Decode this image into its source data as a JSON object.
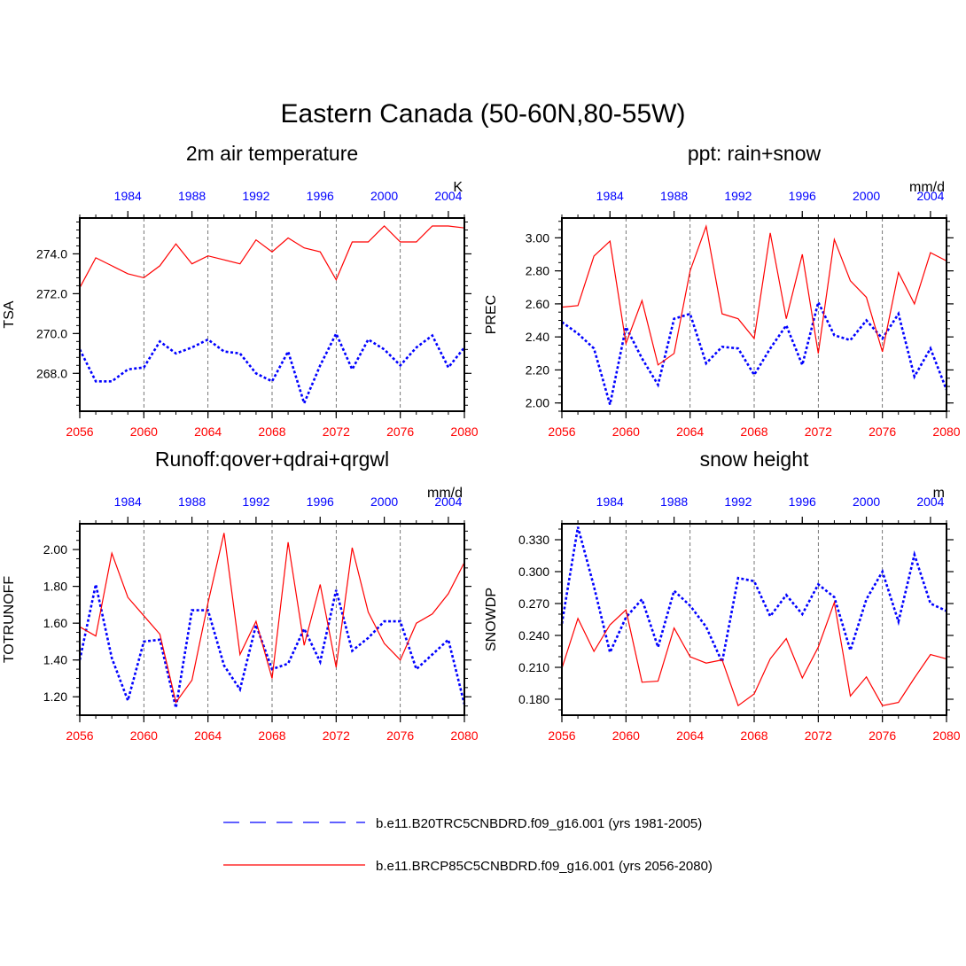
{
  "figure_title": "Eastern Canada (50-60N,80-55W)",
  "colors": {
    "hist": "#0000ff",
    "future": "#ff0000",
    "axis": "#000000",
    "grid": "#555555"
  },
  "chart_data": [
    {
      "type": "line",
      "title": "2m air temperature",
      "ylabel": "TSA",
      "units": "K",
      "ylim": [
        266.1,
        275.8
      ],
      "yticks": [
        268,
        270,
        272,
        274
      ],
      "ytick_labels": [
        "268.0",
        "270.0",
        "272.0",
        "274.0"
      ],
      "ytick_minor": 0.4,
      "x_bottom": [
        2056,
        2057,
        2058,
        2059,
        2060,
        2061,
        2062,
        2063,
        2064,
        2065,
        2066,
        2067,
        2068,
        2069,
        2070,
        2071,
        2072,
        2073,
        2074,
        2075,
        2076,
        2077,
        2078,
        2079,
        2080
      ],
      "xlim": [
        2056,
        2080
      ],
      "bottom_ticks": [
        2056,
        2060,
        2064,
        2068,
        2072,
        2076,
        2080
      ],
      "top_ticks": [
        1984,
        1988,
        1992,
        1996,
        2000,
        2004
      ],
      "top_offset": 75,
      "grid_x": [
        2060,
        2064,
        2068,
        2072,
        2076
      ],
      "series": [
        {
          "name": "b.e11.B20TRC5CNBDRD.f09_g16.001 (yrs 1981-2005)",
          "style": "dashed",
          "values": [
            269.2,
            267.6,
            267.6,
            268.2,
            268.3,
            269.6,
            269.0,
            269.3,
            269.7,
            269.1,
            269.0,
            268.0,
            267.6,
            269.1,
            266.5,
            268.4,
            270.0,
            268.2,
            269.7,
            269.2,
            268.4,
            269.3,
            269.9,
            268.3,
            269.3
          ]
        },
        {
          "name": "b.e11.BRCP85C5CNBDRD.f09_g16.001 (yrs 2056-2080)",
          "style": "solid",
          "values": [
            272.3,
            273.8,
            273.4,
            273.0,
            272.8,
            273.4,
            274.5,
            273.5,
            273.9,
            273.7,
            273.5,
            274.7,
            274.1,
            274.8,
            274.3,
            274.1,
            272.7,
            274.6,
            274.6,
            275.4,
            274.6,
            274.6,
            275.4,
            275.4,
            275.3
          ]
        }
      ]
    },
    {
      "type": "line",
      "title": "ppt: rain+snow",
      "ylabel": "PREC",
      "units": "mm/d",
      "ylim": [
        1.95,
        3.12
      ],
      "yticks": [
        2.0,
        2.2,
        2.4,
        2.6,
        2.8,
        3.0
      ],
      "ytick_labels": [
        "2.00",
        "2.20",
        "2.40",
        "2.60",
        "2.80",
        "3.00"
      ],
      "ytick_minor": 0.05,
      "x_bottom": [
        2056,
        2057,
        2058,
        2059,
        2060,
        2061,
        2062,
        2063,
        2064,
        2065,
        2066,
        2067,
        2068,
        2069,
        2070,
        2071,
        2072,
        2073,
        2074,
        2075,
        2076,
        2077,
        2078,
        2079,
        2080
      ],
      "xlim": [
        2056,
        2080
      ],
      "bottom_ticks": [
        2056,
        2060,
        2064,
        2068,
        2072,
        2076,
        2080
      ],
      "top_ticks": [
        1984,
        1988,
        1992,
        1996,
        2000,
        2004
      ],
      "top_offset": 75,
      "grid_x": [
        2060,
        2064,
        2068,
        2072,
        2076
      ],
      "series": [
        {
          "name": "b.e11.B20TRC5CNBDRD.f09_g16.001 (yrs 1981-2005)",
          "style": "dashed",
          "values": [
            2.49,
            2.42,
            2.33,
            1.99,
            2.46,
            2.27,
            2.11,
            2.51,
            2.54,
            2.24,
            2.34,
            2.33,
            2.17,
            2.33,
            2.47,
            2.23,
            2.61,
            2.41,
            2.38,
            2.5,
            2.39,
            2.54,
            2.16,
            2.33,
            2.08
          ]
        },
        {
          "name": "b.e11.BRCP85C5CNBDRD.f09_g16.001 (yrs 2056-2080)",
          "style": "solid",
          "values": [
            2.58,
            2.59,
            2.89,
            2.98,
            2.36,
            2.62,
            2.23,
            2.3,
            2.8,
            3.07,
            2.54,
            2.51,
            2.39,
            3.03,
            2.51,
            2.9,
            2.3,
            2.99,
            2.74,
            2.64,
            2.31,
            2.79,
            2.6,
            2.91,
            2.86
          ]
        }
      ]
    },
    {
      "type": "line",
      "title": "Runoff:qover+qdrai+qrgwl",
      "ylabel": "TOTRUNOFF",
      "units": "mm/d",
      "ylim": [
        1.1,
        2.14
      ],
      "yticks": [
        1.2,
        1.4,
        1.6,
        1.8,
        2.0
      ],
      "ytick_labels": [
        "1.20",
        "1.40",
        "1.60",
        "1.80",
        "2.00"
      ],
      "ytick_minor": 0.05,
      "x_bottom": [
        2056,
        2057,
        2058,
        2059,
        2060,
        2061,
        2062,
        2063,
        2064,
        2065,
        2066,
        2067,
        2068,
        2069,
        2070,
        2071,
        2072,
        2073,
        2074,
        2075,
        2076,
        2077,
        2078,
        2079,
        2080
      ],
      "xlim": [
        2056,
        2080
      ],
      "bottom_ticks": [
        2056,
        2060,
        2064,
        2068,
        2072,
        2076,
        2080
      ],
      "top_ticks": [
        1984,
        1988,
        1992,
        1996,
        2000,
        2004
      ],
      "top_offset": 75,
      "grid_x": [
        2060,
        2064,
        2068,
        2072,
        2076
      ],
      "series": [
        {
          "name": "b.e11.B20TRC5CNBDRD.f09_g16.001 (yrs 1981-2005)",
          "style": "dashed",
          "values": [
            1.4,
            1.81,
            1.41,
            1.18,
            1.5,
            1.51,
            1.14,
            1.67,
            1.67,
            1.37,
            1.24,
            1.59,
            1.35,
            1.38,
            1.57,
            1.39,
            1.78,
            1.45,
            1.52,
            1.61,
            1.61,
            1.35,
            1.43,
            1.51,
            1.16
          ]
        },
        {
          "name": "b.e11.BRCP85C5CNBDRD.f09_g16.001 (yrs 2056-2080)",
          "style": "solid",
          "values": [
            1.58,
            1.53,
            1.98,
            1.74,
            1.64,
            1.54,
            1.17,
            1.29,
            1.71,
            2.09,
            1.43,
            1.61,
            1.3,
            2.04,
            1.48,
            1.81,
            1.36,
            2.01,
            1.66,
            1.49,
            1.4,
            1.6,
            1.65,
            1.76,
            1.93
          ]
        }
      ]
    },
    {
      "type": "line",
      "title": "snow height",
      "ylabel": "SNOWDP",
      "units": "m",
      "ylim": [
        0.165,
        0.345
      ],
      "yticks": [
        0.18,
        0.21,
        0.24,
        0.27,
        0.3,
        0.33
      ],
      "ytick_labels": [
        "0.180",
        "0.210",
        "0.240",
        "0.270",
        "0.300",
        "0.330"
      ],
      "ytick_minor": 0.01,
      "x_bottom": [
        2056,
        2057,
        2058,
        2059,
        2060,
        2061,
        2062,
        2063,
        2064,
        2065,
        2066,
        2067,
        2068,
        2069,
        2070,
        2071,
        2072,
        2073,
        2074,
        2075,
        2076,
        2077,
        2078,
        2079,
        2080
      ],
      "xlim": [
        2056,
        2080
      ],
      "bottom_ticks": [
        2056,
        2060,
        2064,
        2068,
        2072,
        2076,
        2080
      ],
      "top_ticks": [
        1984,
        1988,
        1992,
        1996,
        2000,
        2004
      ],
      "top_offset": 75,
      "grid_x": [
        2060,
        2064,
        2068,
        2072,
        2076
      ],
      "series": [
        {
          "name": "b.e11.B20TRC5CNBDRD.f09_g16.001 (yrs 1981-2005)",
          "style": "dashed",
          "values": [
            0.251,
            0.342,
            0.286,
            0.224,
            0.257,
            0.274,
            0.229,
            0.282,
            0.268,
            0.248,
            0.215,
            0.294,
            0.291,
            0.258,
            0.278,
            0.26,
            0.288,
            0.276,
            0.226,
            0.274,
            0.3,
            0.253,
            0.316,
            0.27,
            0.263
          ]
        },
        {
          "name": "b.e11.BRCP85C5CNBDRD.f09_g16.001 (yrs 2056-2080)",
          "style": "solid",
          "values": [
            0.209,
            0.256,
            0.225,
            0.25,
            0.264,
            0.196,
            0.197,
            0.247,
            0.22,
            0.214,
            0.217,
            0.174,
            0.185,
            0.218,
            0.237,
            0.2,
            0.229,
            0.271,
            0.183,
            0.201,
            0.174,
            0.177,
            0.2,
            0.222,
            0.218
          ]
        }
      ]
    }
  ],
  "legend": [
    {
      "label": "b.e11.B20TRC5CNBDRD.f09_g16.001 (yrs 1981-2005)",
      "style": "dashed"
    },
    {
      "label": "b.e11.BRCP85C5CNBDRD.f09_g16.001 (yrs 2056-2080)",
      "style": "solid"
    }
  ]
}
